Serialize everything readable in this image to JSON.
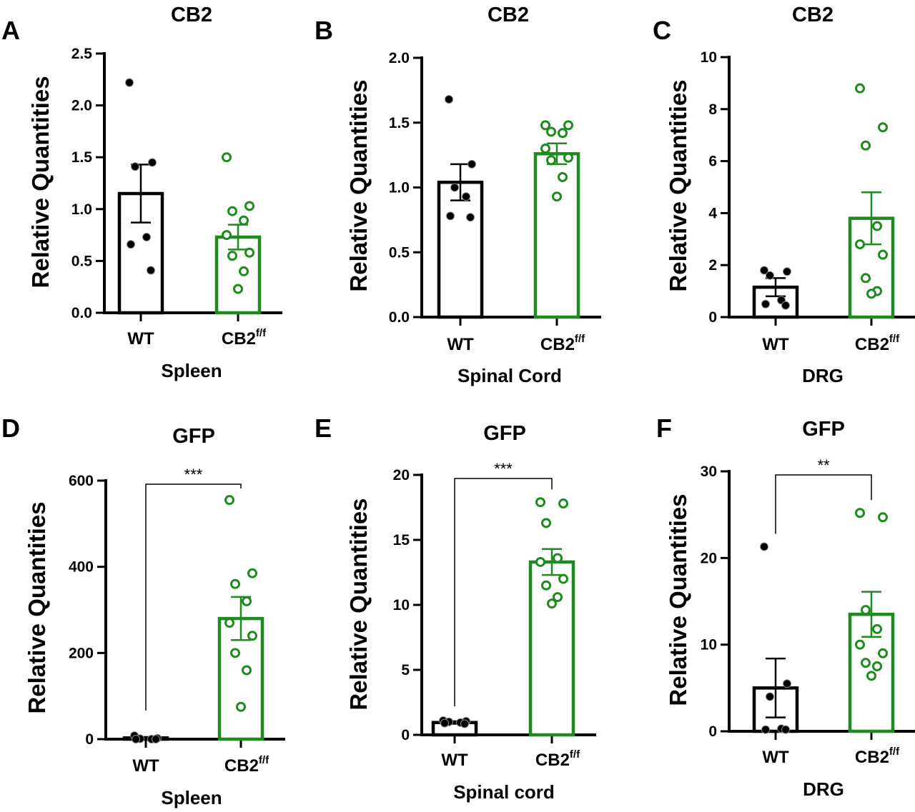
{
  "colors": {
    "wt": "#000000",
    "cb2": "#1f8a1f"
  },
  "chart_data": [
    {
      "id": "A",
      "type": "bar",
      "title": "CB2",
      "ylabel": "Relative Quantities",
      "xlabel": "Spleen",
      "ylim": [
        0,
        2.5
      ],
      "yticks": [
        "0.0",
        "0.5",
        "1.0",
        "1.5",
        "2.0",
        "2.5"
      ],
      "categories": [
        {
          "base": "WT",
          "sup": ""
        },
        {
          "base": "CB2",
          "sup": "f/f"
        }
      ],
      "means": [
        1.15,
        0.73
      ],
      "sem": [
        0.28,
        0.12
      ],
      "points": [
        [
          2.22,
          1.45,
          1.41,
          0.73,
          0.66,
          0.41
        ],
        [
          1.5,
          1.03,
          0.98,
          0.89,
          0.75,
          0.58,
          0.55,
          0.4,
          0.23
        ]
      ],
      "significance": ""
    },
    {
      "id": "B",
      "type": "bar",
      "title": "CB2",
      "ylabel": "Relative Quantities",
      "xlabel": "Spinal Cord",
      "ylim": [
        0,
        2.0
      ],
      "yticks": [
        "0.0",
        "0.5",
        "1.0",
        "1.5",
        "2.0"
      ],
      "categories": [
        {
          "base": "WT",
          "sup": ""
        },
        {
          "base": "CB2",
          "sup": "f/f"
        }
      ],
      "means": [
        1.04,
        1.26
      ],
      "sem": [
        0.14,
        0.08
      ],
      "points": [
        [
          1.68,
          1.18,
          1.0,
          0.93,
          0.78,
          0.77
        ],
        [
          1.48,
          1.48,
          1.43,
          1.42,
          1.3,
          1.23,
          1.21,
          1.08,
          0.93
        ]
      ],
      "significance": ""
    },
    {
      "id": "C",
      "type": "bar",
      "title": "CB2",
      "ylabel": "Relative Quantities",
      "xlabel": "DRG",
      "ylim": [
        0,
        10
      ],
      "yticks": [
        "0",
        "2",
        "4",
        "6",
        "8",
        "10"
      ],
      "categories": [
        {
          "base": "WT",
          "sup": ""
        },
        {
          "base": "CB2",
          "sup": "f/f"
        }
      ],
      "means": [
        1.15,
        3.8
      ],
      "sem": [
        0.35,
        1.0
      ],
      "points": [
        [
          1.8,
          1.75,
          1.6,
          0.65,
          0.5,
          0.45
        ],
        [
          8.8,
          7.3,
          6.6,
          3.5,
          2.8,
          2.4,
          1.5,
          1.0,
          0.9
        ]
      ],
      "significance": ""
    },
    {
      "id": "D",
      "type": "bar",
      "title": "GFP",
      "ylabel": "Relative Quantities",
      "xlabel": "Spleen",
      "ylim": [
        0,
        600
      ],
      "yticks": [
        "0",
        "200",
        "400",
        "600"
      ],
      "categories": [
        {
          "base": "WT",
          "sup": ""
        },
        {
          "base": "CB2",
          "sup": "f/f"
        }
      ],
      "means": [
        3,
        280
      ],
      "sem": [
        2,
        50
      ],
      "points": [
        [
          8,
          2,
          1,
          0,
          0,
          0
        ],
        [
          555,
          385,
          360,
          320,
          270,
          240,
          200,
          160,
          75
        ]
      ],
      "significance": "***"
    },
    {
      "id": "E",
      "type": "bar",
      "title": "GFP",
      "ylabel": "Relative Quantities",
      "xlabel": "Spinal cord",
      "ylim": [
        0,
        20
      ],
      "yticks": [
        "0",
        "5",
        "10",
        "15",
        "20"
      ],
      "categories": [
        {
          "base": "WT",
          "sup": ""
        },
        {
          "base": "CB2",
          "sup": "f/f"
        }
      ],
      "means": [
        0.95,
        13.3
      ],
      "sem": [
        0.1,
        1.0
      ],
      "points": [
        [
          1.1,
          1.05,
          1.0,
          0.95,
          0.9,
          0.85
        ],
        [
          17.9,
          17.8,
          16.3,
          13.6,
          13.3,
          12.0,
          11.5,
          10.6,
          10.1
        ]
      ],
      "significance": "***"
    },
    {
      "id": "F",
      "type": "bar",
      "title": "GFP",
      "ylabel": "Relative Quantities",
      "xlabel": "DRG",
      "ylim": [
        0,
        30
      ],
      "yticks": [
        "0",
        "10",
        "20",
        "30"
      ],
      "categories": [
        {
          "base": "WT",
          "sup": ""
        },
        {
          "base": "CB2",
          "sup": "f/f"
        }
      ],
      "means": [
        5.0,
        13.5
      ],
      "sem": [
        3.4,
        2.6
      ],
      "points": [
        [
          21.3,
          5.5,
          4.0,
          0.3,
          0.2,
          0.2
        ],
        [
          25.2,
          24.7,
          14.0,
          11.8,
          10.0,
          9.0,
          7.9,
          7.5,
          6.4
        ]
      ],
      "significance": "**"
    }
  ]
}
